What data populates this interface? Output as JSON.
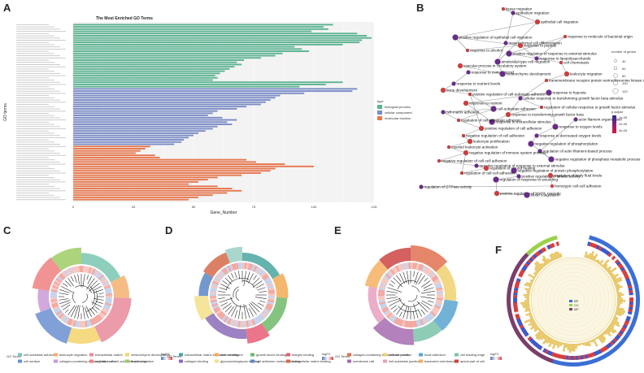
{
  "panels": {
    "A": "A",
    "B": "B",
    "C": "C",
    "D": "D",
    "E": "E",
    "F": "F"
  },
  "colors": {
    "biological_process": "#5cb391",
    "cellular_component": "#7b8cc6",
    "molecular_function": "#e6774e",
    "node_red": "#d63a3a",
    "node_purple": "#6a2a8a",
    "node_blue": "#3a4aa8"
  },
  "panel_a": {
    "title": "The Most Enriched GO Terms",
    "xlabel": "Gene_Number",
    "ylabel": "GO terms",
    "legend_title": "type",
    "legend_items": [
      "biological process",
      "cellular component",
      "molecular function"
    ],
    "x_ticks": [
      "0",
      "25",
      "50",
      "75",
      "100",
      "125"
    ]
  },
  "chart_data": {
    "type": "bar",
    "orientation": "horizontal",
    "title": "The Most Enriched GO Terms",
    "xlabel": "Gene_Number",
    "ylabel": "GO terms",
    "xlim": [
      0,
      125
    ],
    "series": [
      {
        "name": "biological process",
        "values": [
          108,
          104,
          106,
          99,
          118,
          122,
          124,
          120,
          119,
          112,
          92,
          95,
          98,
          87,
          84,
          78,
          71,
          68,
          70,
          67,
          65,
          63,
          61,
          59,
          60,
          58,
          112,
          105,
          94
        ]
      },
      {
        "name": "cellular component",
        "values": [
          118,
          116,
          96,
          86,
          84,
          82,
          80,
          78,
          72,
          68,
          60,
          58,
          56,
          62,
          68,
          64,
          66,
          60,
          58,
          55,
          52,
          50,
          48,
          46,
          45,
          42
        ]
      },
      {
        "name": "molecular function",
        "values": [
          32,
          30,
          28,
          26,
          34,
          36,
          72,
          76,
          88,
          100,
          84,
          82,
          78,
          70,
          60,
          56,
          52,
          48,
          60,
          66,
          70,
          64,
          58,
          52,
          48
        ]
      }
    ]
  },
  "panel_b": {
    "legend_size_title": "number of genes",
    "size_values": [
      "40",
      "60",
      "80",
      "100",
      "120"
    ],
    "legend_p_title": "p.adjust",
    "p_values": [
      "1e-05",
      "2e-05",
      "3e-05"
    ],
    "nodes": [
      "tissue migration",
      "epithelium migration",
      "epithelial cell migration",
      "positive regulation of epithelial cell migration",
      "response to molecule of bacterial origin",
      "mesenchymal cell differentiation",
      "response to peptide",
      "positive regulation of response to external stimulus",
      "response to alcohol",
      "response to lipopolysaccharide",
      "vascular process in circulatory system",
      "ameboidal-type cell migration",
      "cell chemotaxis",
      "response to corticosteroid",
      "leukocyte migration",
      "mesenchyme development",
      "transmembrane receptor protein serine/threonine kinase signaling pathway",
      "response to nutrient levels",
      "bone development",
      "response to hypoxia",
      "positive regulation of cell-substrate adhesion",
      "cellular response to transforming growth factor beta stimulus",
      "response to nutrient",
      "cell-substrate adhesion",
      "regulation of cellular response to growth factor stimulus",
      "cell-matrix adhesion",
      "response to transforming growth factor beta",
      "response to extracellular stimulus",
      "regulation of cell-substrate adhesion",
      "actin filament organization",
      "positive regulation of cell adhesion",
      "response to oxygen levels",
      "negative regulation of cell adhesion",
      "response to decreased oxygen levels",
      "leukocyte proliferation",
      "negative regulation of phosphorylation",
      "myeloid leukocyte activation",
      "regulation of actin filament-based process",
      "negative regulation of immune system process",
      "negative regulation of phosphate metabolic process",
      "negative regulation of cell-cell adhesion",
      "negative regulation of response to external stimulus",
      "regulation of wound healing",
      "negative regulation of protein phosphorylation",
      "regulation of cell-cell adhesion",
      "positive regulation of kinase activity",
      "regulation of body fluid levels",
      "regulation of response to wounding",
      "homotypic cell-cell adhesion",
      "regulation of GTPase activity",
      "positive regulation of MAPK cascade",
      "blood coagulation"
    ]
  },
  "panel_c": {
    "legend_title": "GO Terms",
    "legend_items": [
      "cell-substrate adhesion",
      "leukocyte migration",
      "extracellular matrix",
      "mesenchyme development",
      "cell surface",
      "collagen-containing extracellular matrix",
      "regulation of cell-substrate adhesion",
      "tissue migration"
    ],
    "scale_title": "logFC"
  },
  "panel_d": {
    "legend_title": "GO Terms",
    "legend_items": [
      "extracellular matrix structural constituent",
      "actin binding",
      "growth factor binding",
      "integrin binding",
      "collagen binding",
      "glycosaminoglycan binding",
      "cell adhesion molecule binding",
      "extracellular matrix binding"
    ],
    "scale_title": "logFC"
  },
  "panel_e": {
    "legend_title": "GO Terms",
    "legend_items": [
      "collagen-containing extracellular matrix",
      "cell-cell junction",
      "focal adhesion",
      "cell leading edge",
      "membrane raft",
      "cell-substrate junction",
      "basement membrane",
      "apical part of cell"
    ],
    "scale_title": "logFC"
  },
  "panel_f": {
    "legend_items": [
      "BP",
      "CC",
      "MF"
    ]
  }
}
